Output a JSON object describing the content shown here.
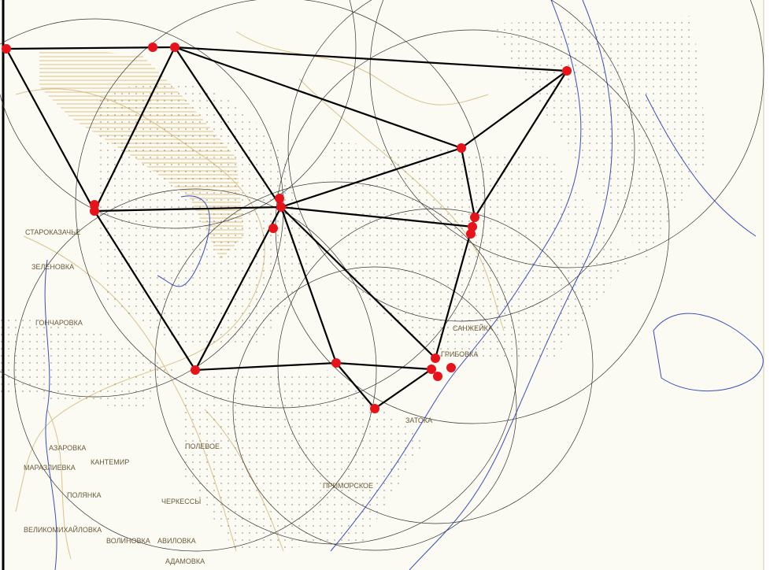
{
  "labels": [
    "СТАРОКАЗАЧЬЕ",
    "ЗЕЛЕНОВКА",
    "ГОНЧАРОВКА",
    "АЗАРОВКА",
    "МАРАЗЛИЕВКА",
    "КАНТЕМИР",
    "ПОЛЯНКА",
    "ЧЕРКЕССЫ",
    "ВЕЛИКОМИХАЙЛОВКА",
    "ВОЛИНОВКА",
    "АВИЛОВКА",
    "АДАМОВКА",
    "ПОЛЕВОЕ",
    "ПРИМОРСКОЕ",
    "ЗАТОКА",
    "САНЖЕЙКА",
    "ГРИБОВКА"
  ]
}
